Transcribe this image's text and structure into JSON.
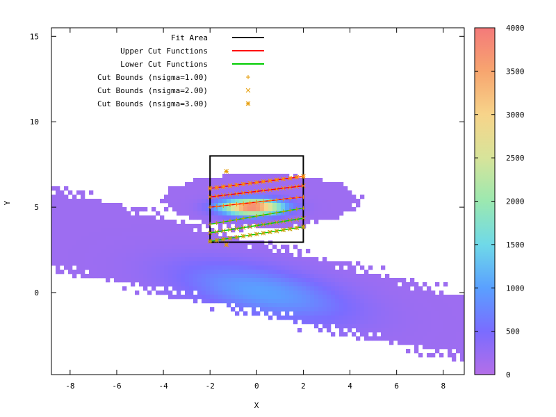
{
  "chart_data": {
    "type": "heatmap",
    "xlabel": "X",
    "ylabel": "Y",
    "xlim": [
      -8.8,
      8.9
    ],
    "ylim": [
      -4.8,
      15.5
    ],
    "xticks": [
      -8,
      -6,
      -4,
      -2,
      0,
      2,
      4,
      6,
      8
    ],
    "yticks": [
      0,
      5,
      10,
      15
    ],
    "colorbar": {
      "range": [
        0,
        4000
      ],
      "ticks": [
        0,
        500,
        1000,
        1500,
        2000,
        2500,
        3000,
        3500,
        4000
      ],
      "colors": [
        "#b46ee8",
        "#7a6cff",
        "#5aa0ff",
        "#6fd9e8",
        "#9be8b0",
        "#d7e49a",
        "#f7d48a",
        "#f7a56f",
        "#f47a7a"
      ]
    },
    "density_components": [
      {
        "name": "broad band",
        "center": [
          0,
          0
        ],
        "peak": 1000
      },
      {
        "name": "dense cluster",
        "center": [
          0,
          5
        ],
        "peak": 4000
      }
    ],
    "fit_area": {
      "x": [
        -2,
        2
      ],
      "y": [
        2.95,
        8
      ]
    },
    "cut_functions": {
      "upper": [
        {
          "x": [
            -2,
            2
          ],
          "y": [
            5.0,
            5.6
          ]
        },
        {
          "x": [
            -2,
            2
          ],
          "y": [
            5.6,
            6.25
          ]
        },
        {
          "x": [
            -2,
            2
          ],
          "y": [
            6.1,
            6.8
          ]
        }
      ],
      "lower": [
        {
          "x": [
            -2,
            2
          ],
          "y": [
            4.0,
            4.95
          ]
        },
        {
          "x": [
            -2,
            2
          ],
          "y": [
            3.5,
            4.35
          ]
        },
        {
          "x": [
            -2,
            2
          ],
          "y": [
            3.0,
            3.85
          ]
        }
      ]
    },
    "cut_bounds": {
      "nsigma_1": {
        "color": "#e59a00",
        "marker": "+",
        "outliers": []
      },
      "nsigma_2": {
        "color": "#e59a00",
        "marker": "x",
        "outliers": []
      },
      "nsigma_3": {
        "color": "#e59a00",
        "marker": "*",
        "outliers": [
          [
            -1.3,
            7.1
          ],
          [
            -1.3,
            2.8
          ]
        ]
      }
    },
    "legend": {
      "placement": "top-left",
      "entries": [
        {
          "label": "Fit Area",
          "style": "line",
          "color": "#000000"
        },
        {
          "label": "Upper Cut Functions",
          "style": "line",
          "color": "#ff0000"
        },
        {
          "label": "Lower Cut Functions",
          "style": "line",
          "color": "#00cc00"
        },
        {
          "label": "Cut Bounds (nsigma=1.00)",
          "style": "point",
          "marker": "+",
          "color": "#e59a00"
        },
        {
          "label": "Cut Bounds (nsigma=2.00)",
          "style": "point",
          "marker": "x",
          "color": "#e59a00"
        },
        {
          "label": "Cut Bounds (nsigma=3.00)",
          "style": "point",
          "marker": "*",
          "color": "#e59a00"
        }
      ]
    }
  }
}
